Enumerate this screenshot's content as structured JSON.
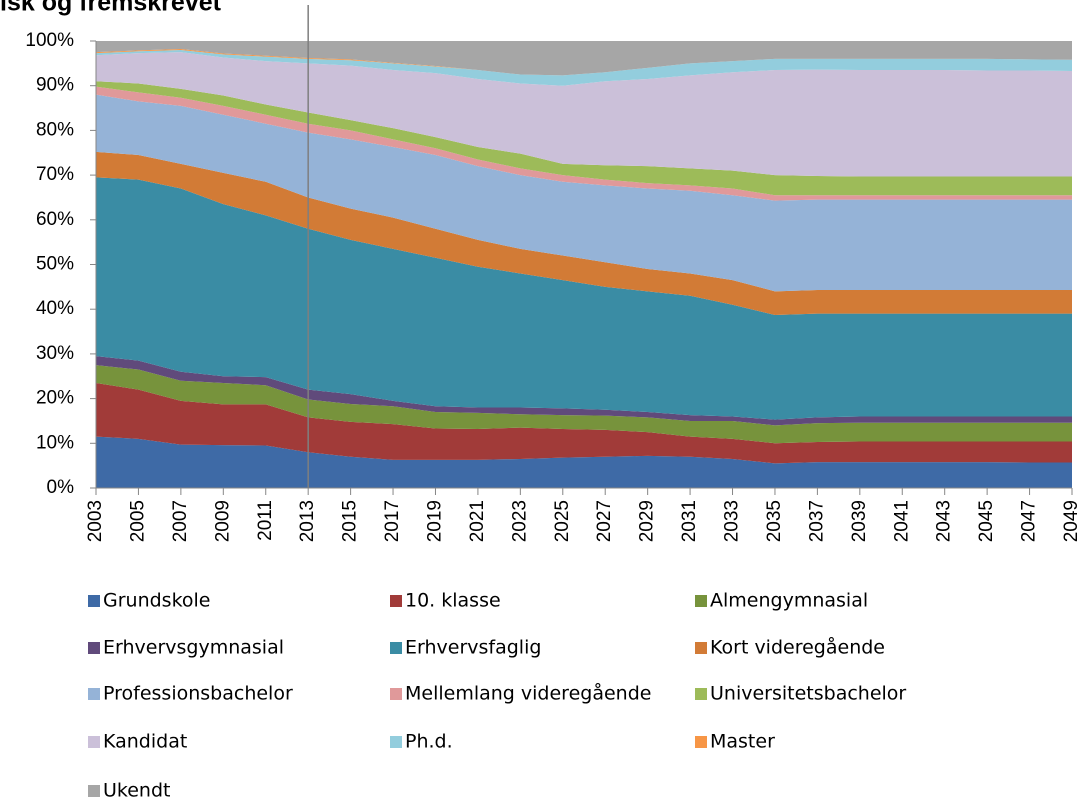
{
  "chart_data": {
    "type": "stacked-area",
    "title": "isk og fremskrevet",
    "x": [
      2003,
      2005,
      2007,
      2009,
      2011,
      2013,
      2015,
      2017,
      2019,
      2021,
      2023,
      2025,
      2027,
      2029,
      2031,
      2033,
      2035,
      2037,
      2039,
      2041,
      2043,
      2045,
      2047,
      2049
    ],
    "xlim": [
      2003,
      2049
    ],
    "xticks": [
      2003,
      2005,
      2007,
      2009,
      2011,
      2013,
      2015,
      2017,
      2019,
      2021,
      2023,
      2025,
      2027,
      2029,
      2031,
      2033,
      2035,
      2037,
      2039,
      2041,
      2043,
      2045,
      2047,
      2049
    ],
    "ylim": [
      0,
      100
    ],
    "yticks": [
      {
        "value": 0,
        "label": "0%"
      },
      {
        "value": 10,
        "label": "10%"
      },
      {
        "value": 20,
        "label": "20%"
      },
      {
        "value": 30,
        "label": "30%"
      },
      {
        "value": 40,
        "label": "40%"
      },
      {
        "value": 50,
        "label": "50%"
      },
      {
        "value": 60,
        "label": "60%"
      },
      {
        "value": 70,
        "label": "70%"
      },
      {
        "value": 80,
        "label": "80%"
      },
      {
        "value": 90,
        "label": "90%"
      },
      {
        "value": 100,
        "label": "100%"
      }
    ],
    "marker_x": 2013,
    "series": [
      {
        "name": "Grundskole",
        "color": "#3e6aa6",
        "values": [
          11.5,
          11,
          9.7,
          9.6,
          9.5,
          8,
          7,
          6.3,
          6.3,
          6.3,
          6.5,
          6.8,
          7,
          7.2,
          7,
          6.5,
          5.5,
          5.8,
          5.8,
          5.8,
          5.8,
          5.8,
          5.7,
          5.7
        ]
      },
      {
        "name": "10. klasse",
        "color": "#a13b39",
        "values": [
          12,
          11,
          9.8,
          9.1,
          9.2,
          7.8,
          7.8,
          8,
          7,
          6.9,
          7,
          6.4,
          6,
          5.3,
          4.5,
          4.5,
          4.5,
          4.5,
          4.6,
          4.6,
          4.6,
          4.6,
          4.7,
          4.7
        ]
      },
      {
        "name": "Almengymnasial",
        "color": "#77933c",
        "values": [
          4,
          4.5,
          4.5,
          4.8,
          4.3,
          4,
          4,
          4,
          3.7,
          3.6,
          3,
          3.1,
          3.2,
          3.3,
          3.5,
          4,
          4,
          4.2,
          4.2,
          4.2,
          4.2,
          4.2,
          4.2,
          4.2
        ]
      },
      {
        "name": "Erhvervsgymnasial",
        "color": "#604a7b",
        "values": [
          2,
          2,
          2,
          1.5,
          1.8,
          2.2,
          2.2,
          1.2,
          1.3,
          1.2,
          1.5,
          1.5,
          1.3,
          1.2,
          1.3,
          1,
          1.3,
          1.3,
          1.4,
          1.4,
          1.4,
          1.4,
          1.4,
          1.4
        ]
      },
      {
        "name": "Erhvervsfaglig",
        "color": "#3a8ca4",
        "values": [
          40,
          40.5,
          41,
          38.5,
          36.2,
          36,
          34.5,
          34,
          33.2,
          31.5,
          30,
          28.7,
          27.5,
          27,
          26.7,
          25,
          23.4,
          23.2,
          23,
          23,
          23,
          23,
          23,
          23
        ]
      },
      {
        "name": "Kort videregående",
        "color": "#d27b36",
        "values": [
          5.7,
          5.5,
          5.5,
          7,
          7.5,
          7,
          7,
          7,
          6.5,
          6,
          5.5,
          5.5,
          5.5,
          5,
          5,
          5.5,
          5.3,
          5.3,
          5.3,
          5.3,
          5.3,
          5.3,
          5.3,
          5.3
        ]
      },
      {
        "name": "Professionsbachelor",
        "color": "#95b3d7",
        "values": [
          12.8,
          12,
          13,
          13,
          13,
          14.5,
          15.5,
          15.8,
          16.5,
          16.5,
          16.5,
          16.5,
          17.2,
          18,
          18.5,
          19,
          20.3,
          20.2,
          20.2,
          20.2,
          20.2,
          20.2,
          20.2,
          20.2
        ]
      },
      {
        "name": "Mellemlang videregående",
        "color": "#e0999a",
        "values": [
          1.8,
          2,
          1.8,
          2,
          2,
          2,
          2,
          1.7,
          1.5,
          1.5,
          1.5,
          1.5,
          1.3,
          1.2,
          1.2,
          1.5,
          1.2,
          1,
          1,
          1,
          1,
          1,
          1,
          1
        ]
      },
      {
        "name": "Universitetsbachelor",
        "color": "#9dbb59",
        "values": [
          1.2,
          2,
          2,
          2.3,
          2.3,
          2.5,
          2.3,
          2.5,
          2.5,
          2.8,
          3.3,
          2.5,
          3.2,
          3.8,
          3.8,
          4,
          4.5,
          4.3,
          4.2,
          4.2,
          4.2,
          4.2,
          4.2,
          4.2
        ]
      },
      {
        "name": "Kandidat",
        "color": "#cbc0d9",
        "values": [
          5.8,
          6.8,
          8.2,
          8.5,
          9.7,
          11,
          12.2,
          13,
          14.3,
          15.2,
          15.7,
          17.5,
          18.8,
          19.5,
          20.8,
          22,
          23.5,
          23.8,
          23.8,
          23.8,
          23.8,
          23.7,
          23.7,
          23.6
        ]
      },
      {
        "name": "Ph.d.",
        "color": "#93cddd",
        "values": [
          0.5,
          0.4,
          0.5,
          0.7,
          1,
          1,
          1.2,
          1.5,
          1.5,
          2,
          2,
          2.3,
          2,
          2.5,
          2.7,
          2.5,
          2.5,
          2.4,
          2.5,
          2.5,
          2.5,
          2.6,
          2.5,
          2.5
        ]
      },
      {
        "name": "Master",
        "color": "#f79646",
        "values": [
          0.2,
          0.2,
          0.2,
          0.2,
          0.2,
          0.2,
          0.2,
          0.1,
          0.1,
          0,
          0,
          0,
          0,
          0,
          0,
          0,
          0,
          0,
          0,
          0,
          0,
          0,
          0,
          0
        ]
      },
      {
        "name": "Ukendt",
        "color": "#a6a6a6",
        "values": [
          2.5,
          2.1,
          1.8,
          2.8,
          3.3,
          3.8,
          4.1,
          4.9,
          5.6,
          6.5,
          7.5,
          7.7,
          7,
          6,
          5,
          4.5,
          4,
          4,
          4,
          4,
          4,
          4,
          4.1,
          4.2
        ]
      }
    ]
  }
}
